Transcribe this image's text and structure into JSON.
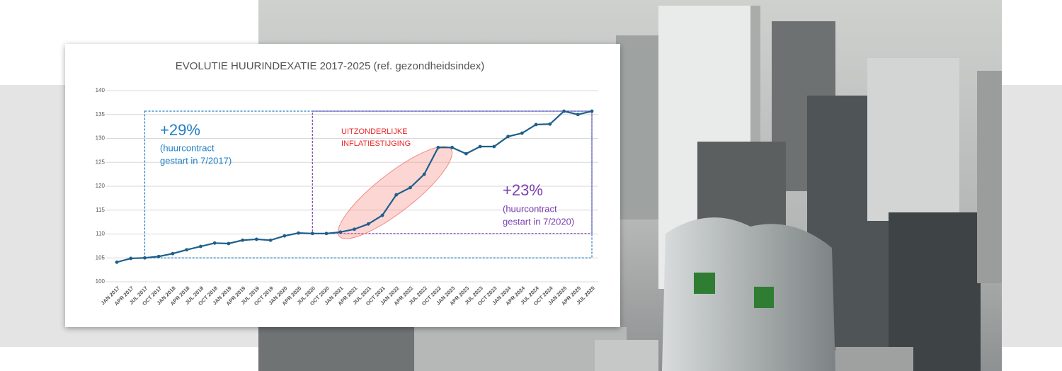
{
  "chart_data": {
    "type": "line",
    "title": "EVOLUTIE HUURINDEXATIE 2017-2025 (ref. gezondheidsindex)",
    "categories": [
      "JAN 2017",
      "APR 2017",
      "JUL 2017",
      "OCT 2017",
      "JAN 2018",
      "APR 2018",
      "JUL 2018",
      "OCT 2018",
      "JAN 2019",
      "APR 2019",
      "JUL 2019",
      "OCT 2019",
      "JAN 2020",
      "APR 2020",
      "JUL 2020",
      "OCT 2020",
      "JAN 2021",
      "APR 2021",
      "JUL 2021",
      "OCT 2021",
      "JAN 2022",
      "APR 2022",
      "JUL 2022",
      "OCT 2022",
      "JAN 2023",
      "APR 2023",
      "JUL 2023",
      "OCT 2023",
      "JAN 2024",
      "APR 2024",
      "JUL 2024",
      "OCT 2024",
      "JAN 2025",
      "APR 2025",
      "JUL 2025"
    ],
    "values": [
      104.1,
      104.9,
      105.0,
      105.3,
      105.9,
      106.7,
      107.4,
      108.1,
      108.0,
      108.7,
      108.9,
      108.7,
      109.6,
      110.2,
      110.1,
      110.1,
      110.4,
      111.0,
      112.1,
      113.9,
      118.2,
      119.7,
      122.5,
      128.1,
      128.1,
      126.8,
      128.3,
      128.3,
      130.4,
      131.1,
      132.9,
      133.0,
      135.7,
      135.0,
      135.7
    ],
    "color": "#1f5f8b",
    "ylim": [
      100,
      140
    ],
    "yticks": [
      100,
      105,
      110,
      115,
      120,
      125,
      130,
      135,
      140
    ],
    "grid": true,
    "annotations": [
      {
        "lines": [
          "+29%",
          "(huurcontract",
          "gestart in 7/2017)"
        ],
        "color": "#1f7fc4"
      },
      {
        "lines": [
          "UITZONDERLIJKE",
          "INFLATIESTIJGING"
        ],
        "color": "#e8282b"
      },
      {
        "lines": [
          "+23%",
          "(huurcontract",
          "gestart in 7/2020)"
        ],
        "color": "#7a3fb0"
      }
    ]
  }
}
